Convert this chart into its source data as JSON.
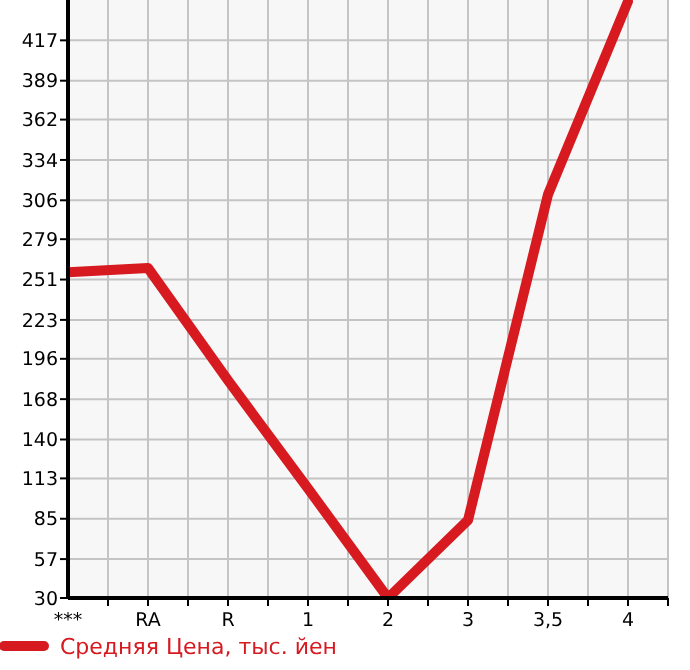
{
  "chart_data": {
    "type": "line",
    "categories": [
      "***",
      "RA",
      "R",
      "1",
      "2",
      "3",
      "3,5",
      "4"
    ],
    "series": [
      {
        "name": "Средняя Цена, тыс. йен",
        "color": "#d71920",
        "values": [
          256,
          259,
          181,
          106,
          30,
          84,
          310,
          444
        ]
      }
    ],
    "ylim": [
      30,
      445
    ],
    "yticks": [
      30,
      57,
      85,
      113,
      140,
      168,
      196,
      223,
      251,
      279,
      306,
      334,
      362,
      389,
      417
    ],
    "grid": true,
    "legend": "bottom left",
    "marker": "none",
    "line_style": "solid"
  }
}
